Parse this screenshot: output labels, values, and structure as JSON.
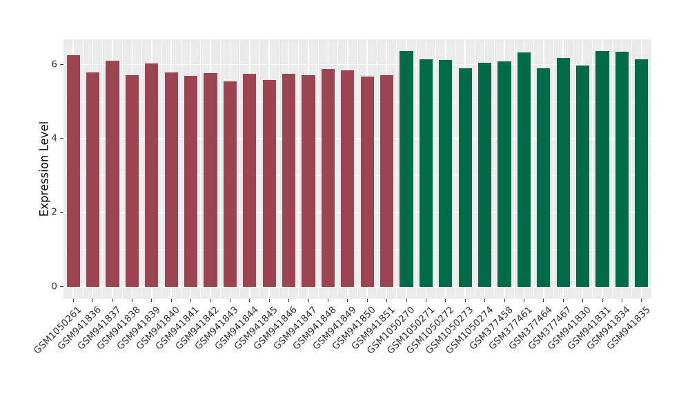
{
  "figure": {
    "background": "#FFFFFF",
    "panel_background": "#EBEBEB",
    "grid_color": "#FFFFFF",
    "tick_color": "#333333",
    "tick_text_color": "#333333",
    "axis_label_color": "#000000"
  },
  "chart_data": {
    "type": "bar",
    "title": "",
    "xlabel": "",
    "ylabel": "Expression Level",
    "ylim": [
      -0.32,
      6.68
    ],
    "yticks": [
      0,
      2,
      4,
      6
    ],
    "yticks_minor": [
      1,
      3,
      5
    ],
    "grid": true,
    "legend": false,
    "bar_width_frac": 0.68,
    "categories": [
      "GSM1050261",
      "GSM941836",
      "GSM941837",
      "GSM941838",
      "GSM941839",
      "GSM941840",
      "GSM941841",
      "GSM941842",
      "GSM941843",
      "GSM941844",
      "GSM941845",
      "GSM941846",
      "GSM941847",
      "GSM941848",
      "GSM941849",
      "GSM941850",
      "GSM941851",
      "GSM1050270",
      "GSM1050271",
      "GSM1050272",
      "GSM1050273",
      "GSM1050274",
      "GSM377458",
      "GSM377461",
      "GSM377464",
      "GSM377467",
      "GSM941830",
      "GSM941831",
      "GSM941834",
      "GSM941835"
    ],
    "values": [
      6.26,
      5.79,
      6.1,
      5.71,
      6.03,
      5.78,
      5.69,
      5.77,
      5.54,
      5.74,
      5.58,
      5.74,
      5.72,
      5.88,
      5.85,
      5.68,
      5.71,
      6.36,
      6.14,
      6.12,
      5.89,
      6.04,
      6.08,
      6.33,
      5.9,
      6.17,
      5.97,
      6.36,
      6.35,
      6.14
    ],
    "groups": [
      {
        "color": "#9A4551",
        "count": 17
      },
      {
        "color": "#006A49",
        "count": 13
      }
    ]
  }
}
